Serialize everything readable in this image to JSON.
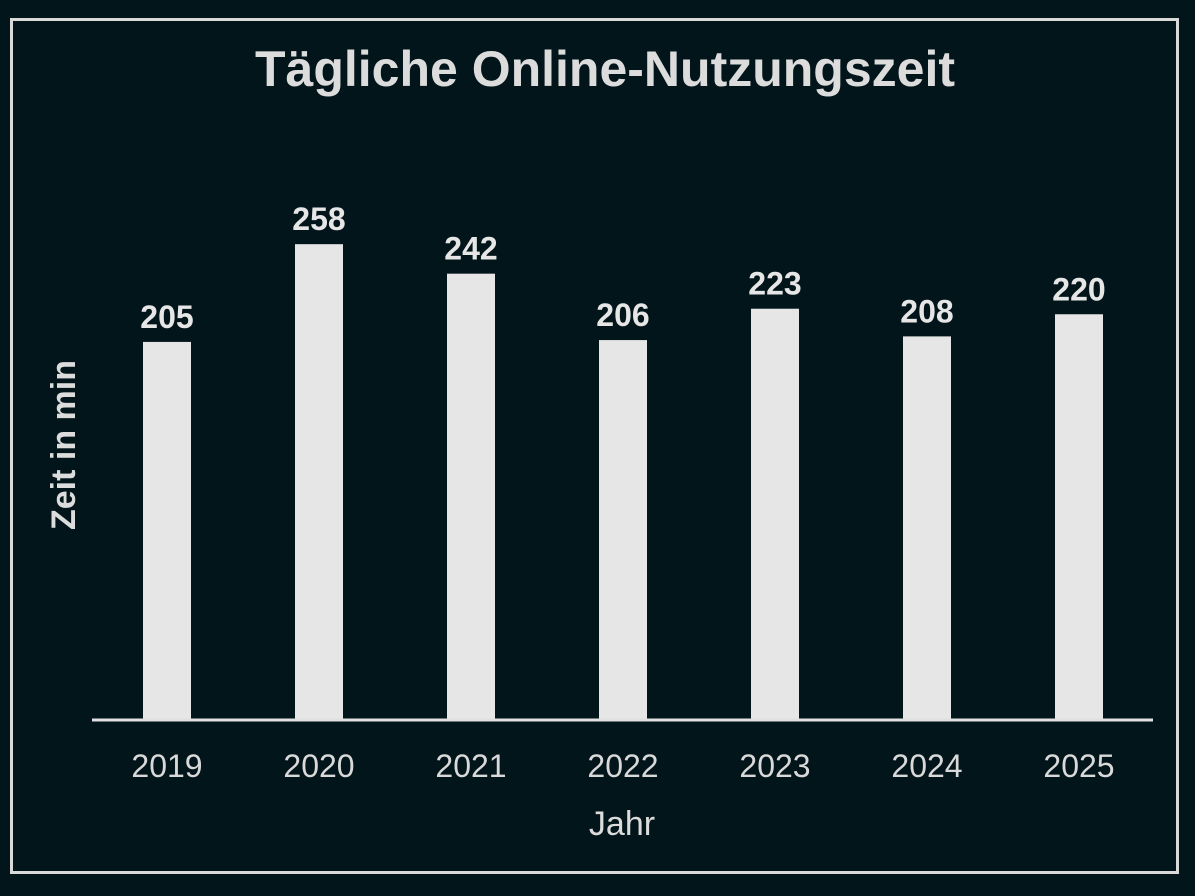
{
  "chart_data": {
    "type": "bar",
    "title": "Tägliche Online-Nutzungszeit",
    "xlabel": "Jahr",
    "ylabel": "Zeit in min",
    "categories": [
      "2019",
      "2020",
      "2021",
      "2022",
      "2023",
      "2024",
      "2025"
    ],
    "values": [
      205,
      258,
      242,
      206,
      223,
      208,
      220
    ],
    "ylim": [
      0,
      300
    ],
    "grid": false,
    "legend": "none",
    "bar_color": "#e6e6e6",
    "background_color": "#02151a",
    "text_color": "#dcdcdc"
  }
}
